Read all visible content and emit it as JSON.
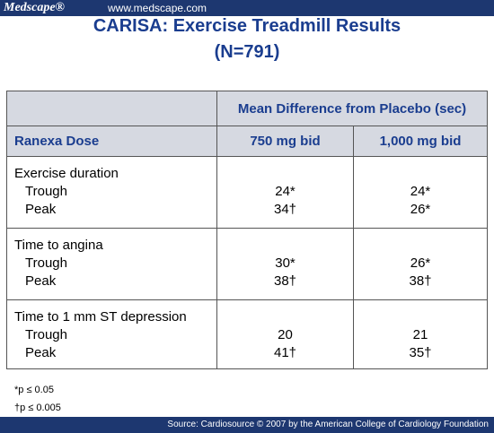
{
  "header": {
    "logo": "Medscape®",
    "url": "www.medscape.com"
  },
  "title": "CARISA: Exercise Treadmill Results",
  "subtitle": "(N=791)",
  "table": {
    "group_header": "Mean Difference from Placebo (sec)",
    "columns": [
      "Ranexa Dose",
      "750 mg bid",
      "1,000 mg bid"
    ],
    "groups": [
      {
        "label": "Exercise duration",
        "rows": [
          {
            "label": "Trough",
            "values": [
              "24*",
              "24*"
            ]
          },
          {
            "label": "Peak",
            "values": [
              "34†",
              "26*"
            ]
          }
        ]
      },
      {
        "label": "Time to angina",
        "rows": [
          {
            "label": "Trough",
            "values": [
              "30*",
              "26*"
            ]
          },
          {
            "label": "Peak",
            "values": [
              "38†",
              "38†"
            ]
          }
        ]
      },
      {
        "label": "Time to 1 mm ST depression",
        "rows": [
          {
            "label": "Trough",
            "values": [
              "20",
              "21"
            ]
          },
          {
            "label": "Peak",
            "values": [
              "41†",
              "35†"
            ]
          }
        ]
      }
    ]
  },
  "footnotes": [
    "*p ≤ 0.05",
    "†p ≤ 0.005"
  ],
  "source": "Source: Cardiosource © 2007 by the American College of Cardiology Foundation"
}
